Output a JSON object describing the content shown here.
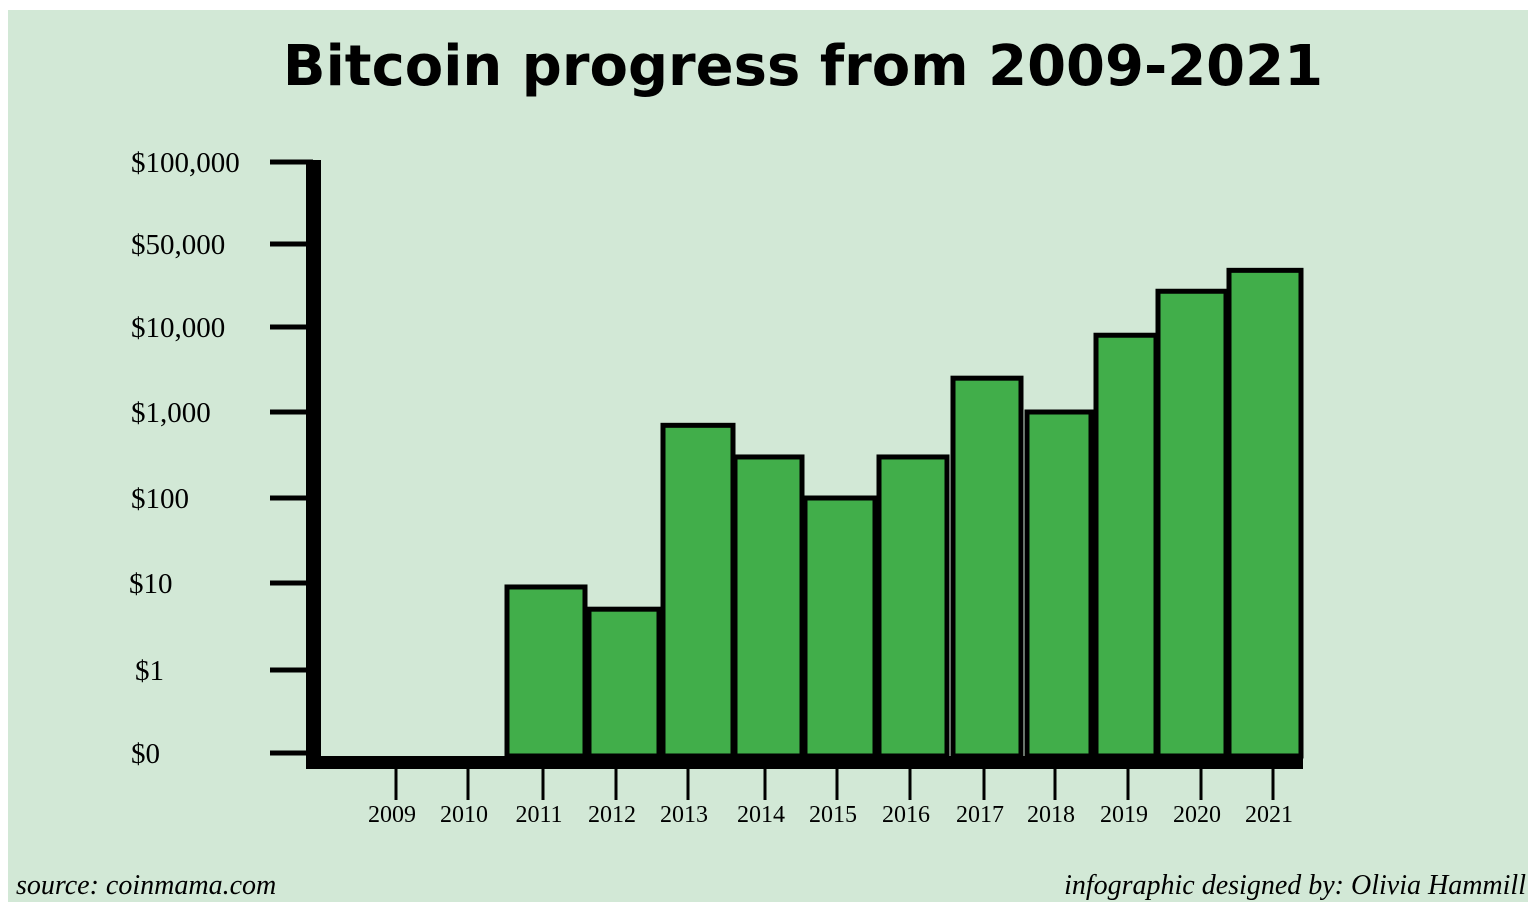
{
  "chart_data": {
    "type": "bar",
    "title": "Bitcoin progress from 2009-2021",
    "xlabel": "",
    "ylabel": "",
    "scale": "log",
    "categories": [
      "2009",
      "2010",
      "2011",
      "2012",
      "2013",
      "2014",
      "2015",
      "2016",
      "2017",
      "2018",
      "2019",
      "2020",
      "2021"
    ],
    "values": [
      0,
      0,
      9,
      5,
      700,
      300,
      100,
      300,
      2500,
      1000,
      8000,
      20000,
      30000
    ],
    "y_tick_labels": [
      "$0",
      "$1",
      "$10",
      "$100",
      "$1,000",
      "$10,000",
      "$50,000",
      "$100,000"
    ],
    "bar_color": "#41ae4a",
    "grid": false
  },
  "footer": {
    "source": "source: coinmama.com",
    "credit": "infographic designed by: Olivia Hammill"
  },
  "colors": {
    "background": "#d2e8d6",
    "bar": "#41ae4a",
    "axis": "#000000"
  }
}
